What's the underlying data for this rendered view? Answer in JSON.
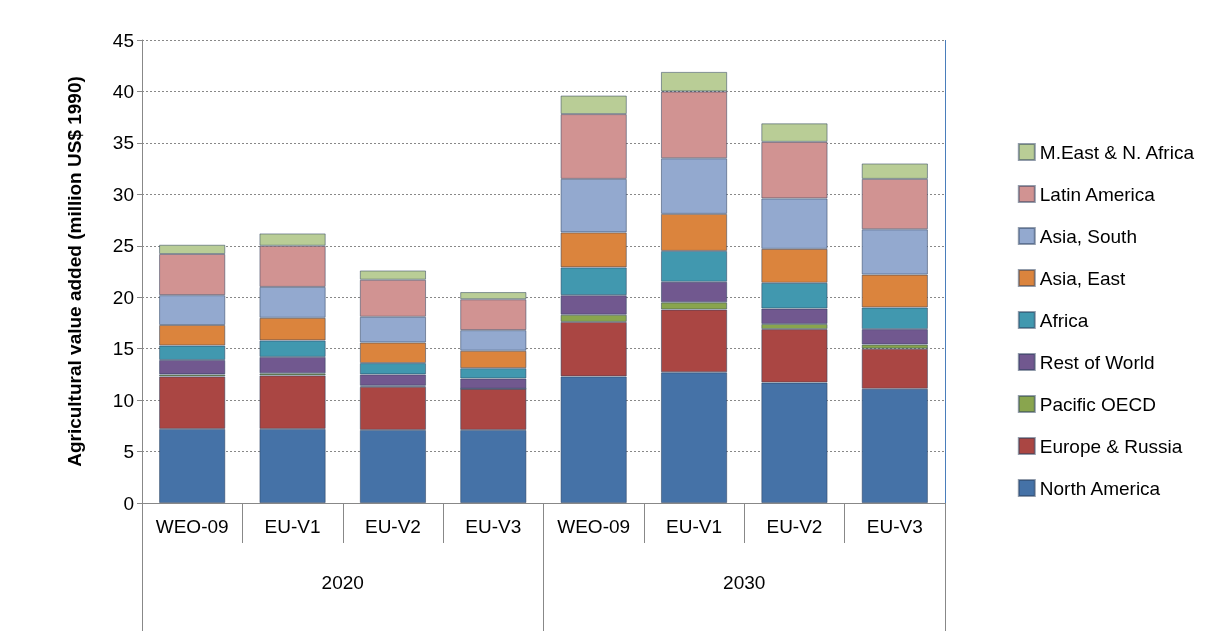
{
  "chart_data": {
    "type": "bar",
    "stacked": true,
    "ylabel": "Agricultural value added (million US$ 1990)",
    "categories": [
      "WEO-09",
      "EU-V1",
      "EU-V2",
      "EU-V3",
      "WEO-09",
      "EU-V1",
      "EU-V2",
      "EU-V3"
    ],
    "annotations": [
      "2020",
      "2030"
    ],
    "ylim": [
      0,
      45
    ],
    "yticks": [
      0,
      5,
      10,
      15,
      20,
      25,
      30,
      35,
      40,
      45
    ],
    "grid": "y",
    "legend": "right",
    "series": [
      {
        "name": "North America",
        "color": "#4572a7",
        "values": [
          7.2,
          7.2,
          7.1,
          7.1,
          12.3,
          12.7,
          11.7,
          11.1
        ]
      },
      {
        "name": "Europe & Russia",
        "color": "#aa4643",
        "values": [
          5.1,
          5.2,
          4.2,
          4.0,
          5.3,
          6.1,
          5.2,
          3.9
        ]
      },
      {
        "name": "Pacific OECD",
        "color": "#89a54e",
        "values": [
          0.2,
          0.2,
          0.1,
          0,
          0.7,
          0.7,
          0.5,
          0.4
        ]
      },
      {
        "name": "Rest of World",
        "color": "#71588f",
        "values": [
          1.4,
          1.6,
          1.1,
          1.0,
          1.9,
          2.0,
          1.5,
          1.5
        ]
      },
      {
        "name": "Africa",
        "color": "#4198af",
        "values": [
          1.4,
          1.6,
          1.1,
          1.0,
          2.7,
          3.0,
          2.5,
          2.1
        ]
      },
      {
        "name": "Asia, East",
        "color": "#db843d",
        "values": [
          2.0,
          2.2,
          2.0,
          1.7,
          3.4,
          3.6,
          3.3,
          3.2
        ]
      },
      {
        "name": "Asia, South",
        "color": "#93a9cf",
        "values": [
          2.9,
          3.0,
          2.5,
          2.0,
          5.2,
          5.4,
          4.9,
          4.4
        ]
      },
      {
        "name": "Latin America",
        "color": "#d19392",
        "values": [
          4.0,
          4.0,
          3.6,
          3.0,
          6.3,
          6.5,
          5.5,
          4.9
        ]
      },
      {
        "name": "M.East & N. Africa",
        "color": "#b9cd96",
        "values": [
          0.9,
          1.2,
          0.9,
          0.7,
          1.8,
          1.9,
          1.8,
          1.5
        ]
      }
    ]
  }
}
